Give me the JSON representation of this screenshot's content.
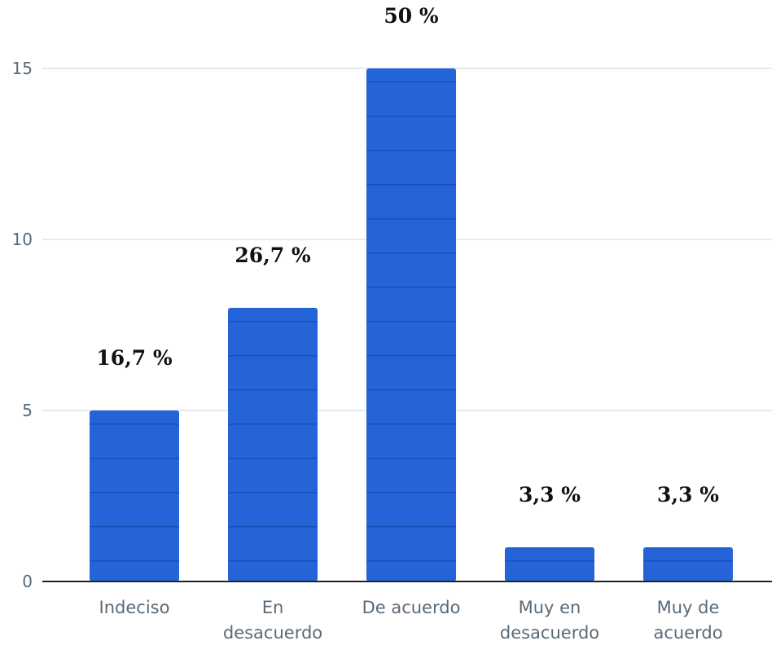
{
  "chart_data": {
    "type": "bar",
    "categories": [
      "Indeciso",
      "En desacuerdo",
      "De acuerdo",
      "Muy en desacuerdo",
      "Muy de acuerdo"
    ],
    "category_lines": [
      [
        "Indeciso"
      ],
      [
        "En",
        "desacuerdo"
      ],
      [
        "De acuerdo"
      ],
      [
        "Muy en",
        "desacuerdo"
      ],
      [
        "Muy de",
        "acuerdo"
      ]
    ],
    "values": [
      5,
      8,
      15,
      1,
      1
    ],
    "data_labels": [
      "16,7 %",
      "26,7 %",
      "50 %",
      "3,3 %",
      "3,3 %"
    ],
    "yticks": [
      0,
      5,
      10,
      15
    ],
    "ylim": [
      0,
      15
    ],
    "grid": true,
    "bar_color": "#2563d9",
    "segment_line_color": "#1b4fb8",
    "grid_color": "#dde4ec",
    "axis_color": "#222222"
  }
}
